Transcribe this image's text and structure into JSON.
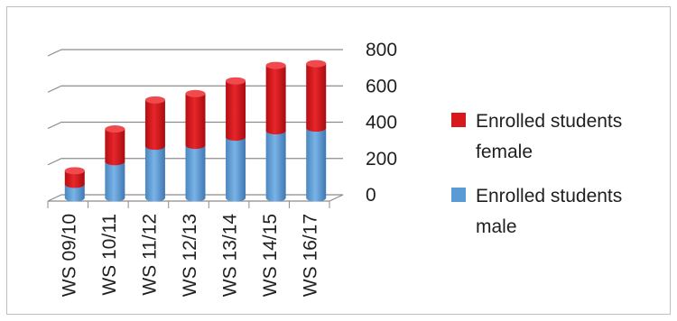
{
  "chart_data": {
    "type": "bar",
    "stacked": true,
    "style": "3d-cylinder",
    "categories": [
      "WS 09/10",
      "WS 10/11",
      "WS 11/12",
      "WS 12/13",
      "WS 13/14",
      "WS 14/15",
      "WS 16/17"
    ],
    "series": [
      {
        "name": "Enrolled students male",
        "color": "#5b9bd5",
        "values": [
          75,
          200,
          285,
          290,
          335,
          370,
          385
        ]
      },
      {
        "name": "Enrolled students female",
        "color": "#d7191c",
        "values": [
          75,
          180,
          255,
          285,
          310,
          360,
          355
        ]
      }
    ],
    "y_ticks": [
      "0",
      "200",
      "400",
      "600",
      "800"
    ],
    "ylim": [
      0,
      800
    ],
    "grid": true,
    "legend": {
      "position": "right",
      "entries": [
        {
          "series": 1,
          "lines": [
            "Enrolled students",
            "female"
          ],
          "color": "#d7191c"
        },
        {
          "series": 0,
          "lines": [
            "Enrolled students",
            "male"
          ],
          "color": "#5b9bd5"
        }
      ]
    }
  }
}
